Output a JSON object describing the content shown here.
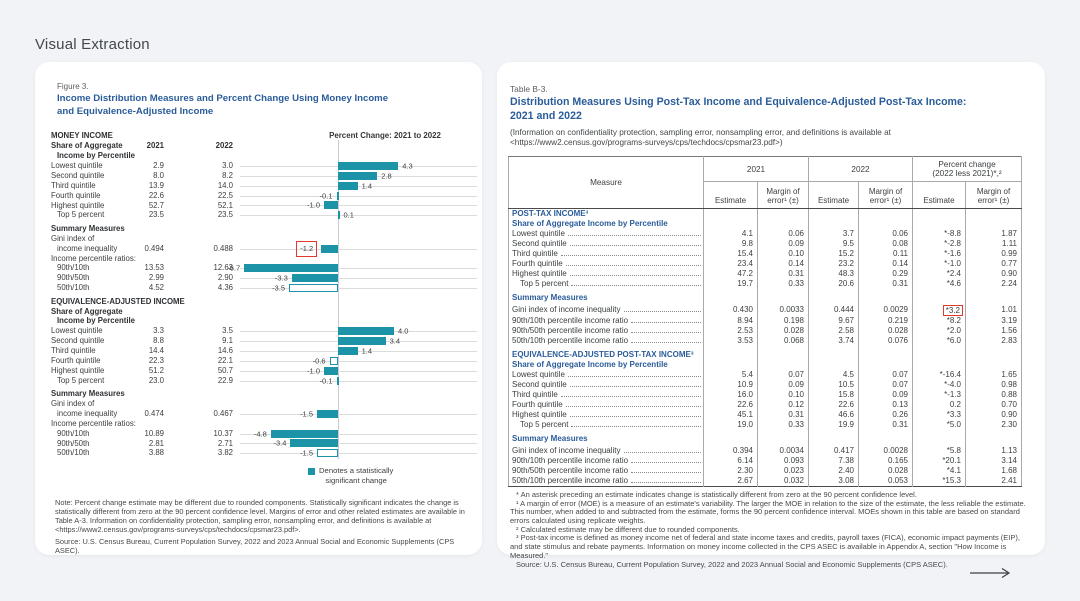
{
  "page": {
    "title": "Visual Extraction"
  },
  "colors": {
    "accent_teal": "#1D93A8",
    "heading_blue": "#2A5C9A",
    "annotation_red": "#E2392C"
  },
  "chart_data": {
    "type": "bar",
    "orientation": "horizontal",
    "title": "Percent Change: 2021 to 2022",
    "categories": [
      "Lowest quintile",
      "Second quintile",
      "Third quintile",
      "Fourth quintile",
      "Highest quintile",
      "Top 5 percent",
      "Gini index of income inequality",
      "90th/10th percentile ratio",
      "90th/50th percentile ratio",
      "50th/10th percentile ratio"
    ],
    "series": [
      {
        "name": "Money income",
        "values": [
          4.3,
          2.8,
          1.4,
          -0.1,
          -1.0,
          0.1,
          -1.2,
          -6.7,
          -3.3,
          -3.5
        ],
        "statistically_significant": [
          true,
          true,
          true,
          false,
          true,
          false,
          true,
          true,
          true,
          false
        ]
      },
      {
        "name": "Equivalence-adjusted income",
        "values": [
          4.0,
          3.4,
          1.4,
          -0.6,
          -1.0,
          -0.1,
          -1.5,
          -4.8,
          -3.4,
          -1.5
        ],
        "statistically_significant": [
          true,
          true,
          true,
          false,
          true,
          false,
          true,
          true,
          true,
          false
        ]
      }
    ],
    "xlim": [
      -7.5,
      5.5
    ],
    "grid": "per-row horizontal gridlines with vertical zero axis",
    "legend": "Denotes a statistically significant change",
    "legend_position": "bottom-center",
    "highlight": "red box around -1.2 value (money income Gini index)"
  },
  "figure": {
    "label": "Figure 3.",
    "title_lines": [
      "Income Distribution Measures and Percent Change Using Money Income",
      "and Equivalence-Adjusted Income"
    ],
    "chart_title": "Percent Change: 2021 to 2022",
    "legend_lines": [
      "Denotes a statistically",
      "significant change"
    ],
    "note": "Note: Percent change estimate may be different due to rounded components. Statistically significant indicates the change is statistically different from zero at the 90 percent confidence level. Margins of error and other related estimates are available in Table A-3. Information on confidentiality protection, sampling error, nonsampling error, and definitions is available at <https://www2.census.gov/programs-surveys/cps/techdocs/cpsmar23.pdf>.",
    "source": "Source: U.S. Census Bureau, Current Population Survey, 2022 and 2023 Annual Social and Economic Supplements (CPS ASEC).",
    "rows": [
      {
        "kind": "head1",
        "text": "MONEY INCOME"
      },
      {
        "kind": "colhead",
        "text": "Share of Aggregate",
        "v1": "2021",
        "v2": "2022"
      },
      {
        "kind": "head2",
        "text": "Income by Percentile"
      },
      {
        "kind": "data",
        "label": "Lowest quintile",
        "v1": "2.9",
        "v2": "3.0",
        "change": 4.3,
        "change_label": "4.3",
        "sig": true
      },
      {
        "kind": "data",
        "label": "Second quintile",
        "v1": "8.0",
        "v2": "8.2",
        "change": 2.8,
        "change_label": "2.8",
        "sig": true
      },
      {
        "kind": "data",
        "label": "Third quintile",
        "v1": "13.9",
        "v2": "14.0",
        "change": 1.4,
        "change_label": "1.4",
        "sig": true
      },
      {
        "kind": "data",
        "label": "Fourth quintile",
        "v1": "22.6",
        "v2": "22.5",
        "change": -0.1,
        "change_label": "-0.1",
        "sig": false
      },
      {
        "kind": "data",
        "label": "Highest quintile",
        "v1": "52.7",
        "v2": "52.1",
        "change": -1.0,
        "change_label": "-1.0",
        "sig": true
      },
      {
        "kind": "data",
        "label": "Top 5 percent",
        "indent": true,
        "v1": "23.5",
        "v2": "23.5",
        "change": 0.1,
        "change_label": "0.1",
        "sig": false
      },
      {
        "kind": "gap"
      },
      {
        "kind": "head1",
        "text": "Summary Measures"
      },
      {
        "kind": "text",
        "text": "Gini index of"
      },
      {
        "kind": "data",
        "label": "income inequality",
        "indent": true,
        "v1": "0.494",
        "v2": "0.488",
        "change": -1.2,
        "change_label": "-1.2",
        "sig": true,
        "highlight": true
      },
      {
        "kind": "text",
        "text": "Income percentile ratios:"
      },
      {
        "kind": "data",
        "label": "90th/10th",
        "indent": true,
        "v1": "13.53",
        "v2": "12.63",
        "change": -6.7,
        "change_label": "-6.7",
        "sig": true
      },
      {
        "kind": "data",
        "label": "90th/50th",
        "indent": true,
        "v1": "2.99",
        "v2": "2.90",
        "change": -3.3,
        "change_label": "-3.3",
        "sig": true
      },
      {
        "kind": "data",
        "label": "50th/10th",
        "indent": true,
        "v1": "4.52",
        "v2": "4.36",
        "change": -3.5,
        "change_label": "-3.5",
        "sig": false
      },
      {
        "kind": "gap"
      },
      {
        "kind": "head1",
        "text": "EQUIVALENCE-ADJUSTED INCOME"
      },
      {
        "kind": "colhead",
        "text": "Share of Aggregate",
        "v1": "",
        "v2": ""
      },
      {
        "kind": "head2",
        "text": "Income by Percentile"
      },
      {
        "kind": "data",
        "label": "Lowest quintile",
        "v1": "3.3",
        "v2": "3.5",
        "change": 4.0,
        "change_label": "4.0",
        "sig": true
      },
      {
        "kind": "data",
        "label": "Second quintile",
        "v1": "8.8",
        "v2": "9.1",
        "change": 3.4,
        "change_label": "3.4",
        "sig": true
      },
      {
        "kind": "data",
        "label": "Third quintile",
        "v1": "14.4",
        "v2": "14.6",
        "change": 1.4,
        "change_label": "1.4",
        "sig": true
      },
      {
        "kind": "data",
        "label": "Fourth quintile",
        "v1": "22.3",
        "v2": "22.1",
        "change": -0.6,
        "change_label": "-0.6",
        "sig": false
      },
      {
        "kind": "data",
        "label": "Highest quintile",
        "v1": "51.2",
        "v2": "50.7",
        "change": -1.0,
        "change_label": "-1.0",
        "sig": true
      },
      {
        "kind": "data",
        "label": "Top 5 percent",
        "indent": true,
        "v1": "23.0",
        "v2": "22.9",
        "change": -0.1,
        "change_label": "-0.1",
        "sig": false
      },
      {
        "kind": "gap"
      },
      {
        "kind": "head1",
        "text": "Summary Measures"
      },
      {
        "kind": "text",
        "text": "Gini index of"
      },
      {
        "kind": "data",
        "label": "income inequality",
        "indent": true,
        "v1": "0.474",
        "v2": "0.467",
        "change": -1.5,
        "change_label": "-1.5",
        "sig": true
      },
      {
        "kind": "text",
        "text": "Income percentile ratios:"
      },
      {
        "kind": "data",
        "label": "90th/10th",
        "indent": true,
        "v1": "10.89",
        "v2": "10.37",
        "change": -4.8,
        "change_label": "-4.8",
        "sig": true
      },
      {
        "kind": "data",
        "label": "90th/50th",
        "indent": true,
        "v1": "2.81",
        "v2": "2.71",
        "change": -3.4,
        "change_label": "-3.4",
        "sig": true
      },
      {
        "kind": "data",
        "label": "50th/10th",
        "indent": true,
        "v1": "3.88",
        "v2": "3.82",
        "change": -1.5,
        "change_label": "-1.5",
        "sig": false
      }
    ]
  },
  "table": {
    "label": "Table B-3.",
    "title_lines": [
      "Distribution Measures Using Post-Tax Income and Equivalence-Adjusted Post-Tax Income:",
      "2021 and 2022"
    ],
    "subtitle_lines": [
      "(Information on confidentiality protection, sampling error, nonsampling error, and definitions is available at",
      "<https://www2.census.gov/programs-surveys/cps/techdocs/cpsmar23.pdf>)"
    ],
    "columns": {
      "measure": "Measure",
      "groups": [
        {
          "line1": "2021",
          "line2": ""
        },
        {
          "line1": "2022",
          "line2": ""
        },
        {
          "line1": "Percent change",
          "line2": "(2022 less 2021)*,²"
        }
      ],
      "estimate_label": "Estimate",
      "moe_line1": "Margin of",
      "moe_line2": "error¹ (±)"
    },
    "body": [
      {
        "kind": "sec",
        "text": "POST-TAX INCOME³"
      },
      {
        "kind": "sub",
        "text": "Share of Aggregate Income by Percentile"
      },
      {
        "kind": "row",
        "label": "Lowest quintile",
        "vals": [
          "4.1",
          "0.06",
          "3.7",
          "0.06",
          "*-8.8",
          "1.87"
        ]
      },
      {
        "kind": "row",
        "label": "Second quintile",
        "vals": [
          "9.8",
          "0.09",
          "9.5",
          "0.08",
          "*-2.8",
          "1.11"
        ]
      },
      {
        "kind": "row",
        "label": "Third quintile",
        "vals": [
          "15.4",
          "0.10",
          "15.2",
          "0.11",
          "*-1.6",
          "0.99"
        ]
      },
      {
        "kind": "row",
        "label": "Fourth quintile",
        "vals": [
          "23.4",
          "0.14",
          "23.2",
          "0.14",
          "*-1.0",
          "0.77"
        ]
      },
      {
        "kind": "row",
        "label": "Highest quintile",
        "vals": [
          "47.2",
          "0.31",
          "48.3",
          "0.29",
          "*2.4",
          "0.90"
        ]
      },
      {
        "kind": "row",
        "label": "Top 5 percent",
        "indent": true,
        "vals": [
          "19.7",
          "0.33",
          "20.6",
          "0.31",
          "*4.6",
          "2.24"
        ]
      },
      {
        "kind": "sub",
        "text": "Summary Measures",
        "space": true
      },
      {
        "kind": "row",
        "label": "Gini index of income inequality",
        "vals": [
          "0.430",
          "0.0033",
          "0.444",
          "0.0029",
          "*3.2",
          "1.01"
        ],
        "highlight": 4
      },
      {
        "kind": "row",
        "label": "90th/10th percentile income ratio",
        "vals": [
          "8.94",
          "0.198",
          "9.67",
          "0.219",
          "*8.2",
          "3.19"
        ]
      },
      {
        "kind": "row",
        "label": "90th/50th percentile income ratio",
        "vals": [
          "2.53",
          "0.028",
          "2.58",
          "0.028",
          "*2.0",
          "1.56"
        ]
      },
      {
        "kind": "row",
        "label": "50th/10th percentile income ratio",
        "vals": [
          "3.53",
          "0.068",
          "3.74",
          "0.076",
          "*6.0",
          "2.83"
        ]
      },
      {
        "kind": "gap"
      },
      {
        "kind": "sec",
        "text": "EQUIVALENCE-ADJUSTED POST-TAX INCOME³"
      },
      {
        "kind": "sub",
        "text": "Share of Aggregate Income by Percentile"
      },
      {
        "kind": "row",
        "label": "Lowest quintile",
        "vals": [
          "5.4",
          "0.07",
          "4.5",
          "0.07",
          "*-16.4",
          "1.65"
        ]
      },
      {
        "kind": "row",
        "label": "Second quintile",
        "vals": [
          "10.9",
          "0.09",
          "10.5",
          "0.07",
          "*-4.0",
          "0.98"
        ]
      },
      {
        "kind": "row",
        "label": "Third quintile",
        "vals": [
          "16.0",
          "0.10",
          "15.8",
          "0.09",
          "*-1.3",
          "0.88"
        ]
      },
      {
        "kind": "row",
        "label": "Fourth quintile",
        "vals": [
          "22.6",
          "0.12",
          "22.6",
          "0.13",
          "0.2",
          "0.70"
        ]
      },
      {
        "kind": "row",
        "label": "Highest quintile",
        "vals": [
          "45.1",
          "0.31",
          "46.6",
          "0.26",
          "*3.3",
          "0.90"
        ]
      },
      {
        "kind": "row",
        "label": "Top 5 percent",
        "indent": true,
        "vals": [
          "19.0",
          "0.33",
          "19.9",
          "0.31",
          "*5.0",
          "2.30"
        ]
      },
      {
        "kind": "sub",
        "text": "Summary Measures",
        "space": true
      },
      {
        "kind": "row",
        "label": "Gini index of income inequality",
        "vals": [
          "0.394",
          "0.0034",
          "0.417",
          "0.0028",
          "*5.8",
          "1.13"
        ]
      },
      {
        "kind": "row",
        "label": "90th/10th percentile income ratio",
        "vals": [
          "6.14",
          "0.093",
          "7.38",
          "0.165",
          "*20.1",
          "3.14"
        ]
      },
      {
        "kind": "row",
        "label": "90th/50th percentile income ratio",
        "vals": [
          "2.30",
          "0.023",
          "2.40",
          "0.028",
          "*4.1",
          "1.68"
        ]
      },
      {
        "kind": "row",
        "label": "50th/10th percentile income ratio",
        "vals": [
          "2.67",
          "0.032",
          "3.08",
          "0.053",
          "*15.3",
          "2.41"
        ]
      }
    ],
    "footnotes": [
      "* An asterisk preceding an estimate indicates change is statistically different from zero at the 90 percent confidence level.",
      "¹ A margin of error (MOE) is a measure of an estimate's variability. The larger the MOE in relation to the size of the estimate, the less reliable the estimate. This number, when added to and subtracted from the estimate, forms the 90 percent confidence interval. MOEs shown in this table are based on standard errors calculated using replicate weights.",
      "² Calculated estimate may be different due to rounded components.",
      "³ Post-tax income is defined as money income net of federal and state income taxes and credits, payroll taxes (FICA), economic impact payments (EIP), and state stimulus and rebate payments. Information on money income collected in the CPS ASEC is available in Appendix A, section \"How Income is Measured.\"",
      "Source: U.S. Census Bureau, Current Population Survey, 2022 and 2023 Annual Social and Economic Supplements (CPS ASEC)."
    ]
  },
  "nav": {
    "icon": "arrow-right"
  }
}
